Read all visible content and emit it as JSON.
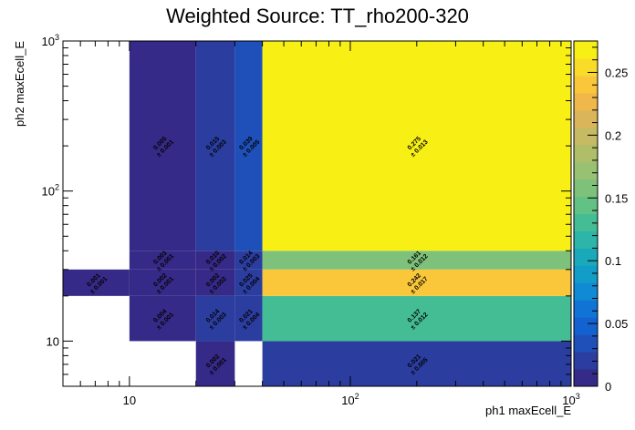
{
  "chart_data": {
    "type": "heatmap",
    "title": "Weighted Source: TT_rho200-320",
    "xlabel": "ph1 maxEcell_E",
    "ylabel": "ph2 maxEcell_E",
    "x_scale": "log",
    "y_scale": "log",
    "xlim": [
      5,
      1000
    ],
    "ylim": [
      5,
      1000
    ],
    "x_ticks": [
      {
        "value": 10,
        "base": "10",
        "exp": ""
      },
      {
        "value": 100,
        "base": "10",
        "exp": "2"
      },
      {
        "value": 1000,
        "base": "10",
        "exp": "3"
      }
    ],
    "y_ticks": [
      {
        "value": 10,
        "base": "10",
        "exp": ""
      },
      {
        "value": 100,
        "base": "10",
        "exp": "2"
      },
      {
        "value": 1000,
        "base": "10",
        "exp": "3"
      }
    ],
    "colorbar": {
      "min": 0,
      "max": 0.275,
      "ticks": [
        "0",
        "0.05",
        "0.1",
        "0.15",
        "0.2",
        "0.25"
      ],
      "tick_values": [
        0,
        0.05,
        0.1,
        0.15,
        0.2,
        0.25
      ],
      "palette": [
        "#352a87",
        "#2b3d9f",
        "#1f50b9",
        "#1462d0",
        "#0f74d6",
        "#108ad2",
        "#129cc8",
        "#1aa9bb",
        "#2cb5a8",
        "#45bd94",
        "#62c184",
        "#7ec17a",
        "#98c172",
        "#b0be6a",
        "#c6ba63",
        "#dbb55a",
        "#f0b84a",
        "#fbc73a",
        "#f9dc28",
        "#f8f014"
      ]
    },
    "x_edges": [
      5,
      10,
      20,
      30,
      40,
      1000
    ],
    "y_edges": [
      5,
      10,
      20,
      30,
      40,
      1000
    ],
    "cells": [
      {
        "x": [
          5,
          10
        ],
        "y": [
          20,
          30
        ],
        "value": 0.001,
        "label": "0.001",
        "err": "± 0.001"
      },
      {
        "x": [
          10,
          20
        ],
        "y": [
          10,
          20
        ],
        "value": 0.004,
        "label": "0.004",
        "err": "± 0.001"
      },
      {
        "x": [
          10,
          20
        ],
        "y": [
          20,
          30
        ],
        "value": 0.002,
        "label": "0.002",
        "err": "± 0.001"
      },
      {
        "x": [
          10,
          20
        ],
        "y": [
          30,
          40
        ],
        "value": 0.003,
        "label": "0.003",
        "err": "± 0.001"
      },
      {
        "x": [
          10,
          20
        ],
        "y": [
          40,
          1000
        ],
        "value": 0.005,
        "label": "0.005",
        "err": "± 0.001"
      },
      {
        "x": [
          20,
          30
        ],
        "y": [
          5,
          10
        ],
        "value": 0.002,
        "label": "0.002",
        "err": "± 0.001"
      },
      {
        "x": [
          20,
          30
        ],
        "y": [
          10,
          20
        ],
        "value": 0.014,
        "label": "0.014",
        "err": "± 0.003"
      },
      {
        "x": [
          20,
          30
        ],
        "y": [
          20,
          30
        ],
        "value": 0.002,
        "label": "0.002",
        "err": "± 0.002"
      },
      {
        "x": [
          20,
          30
        ],
        "y": [
          30,
          40
        ],
        "value": 0.01,
        "label": "0.010",
        "err": "± 0.002"
      },
      {
        "x": [
          20,
          30
        ],
        "y": [
          40,
          1000
        ],
        "value": 0.015,
        "label": "0.015",
        "err": "± 0.003"
      },
      {
        "x": [
          30,
          40
        ],
        "y": [
          10,
          20
        ],
        "value": 0.021,
        "label": "0.021",
        "err": "± 0.004"
      },
      {
        "x": [
          30,
          40
        ],
        "y": [
          20,
          30
        ],
        "value": 0.025,
        "label": "0.025",
        "err": "± 0.004"
      },
      {
        "x": [
          30,
          40
        ],
        "y": [
          30,
          40
        ],
        "value": 0.014,
        "label": "0.014",
        "err": "± 0.003"
      },
      {
        "x": [
          30,
          40
        ],
        "y": [
          40,
          1000
        ],
        "value": 0.039,
        "label": "0.039",
        "err": "± 0.005"
      },
      {
        "x": [
          40,
          1000
        ],
        "y": [
          5,
          10
        ],
        "value": 0.021,
        "label": "0.021",
        "err": "± 0.005"
      },
      {
        "x": [
          40,
          1000
        ],
        "y": [
          10,
          20
        ],
        "value": 0.137,
        "label": "0.137",
        "err": "± 0.012"
      },
      {
        "x": [
          40,
          1000
        ],
        "y": [
          20,
          30
        ],
        "value": 0.242,
        "label": "0.242",
        "err": "± 0.017"
      },
      {
        "x": [
          40,
          1000
        ],
        "y": [
          30,
          40
        ],
        "value": 0.161,
        "label": "0.161",
        "err": "± 0.012"
      },
      {
        "x": [
          40,
          1000
        ],
        "y": [
          40,
          1000
        ],
        "value": 0.275,
        "label": "0.275",
        "err": "± 0.013"
      }
    ]
  }
}
